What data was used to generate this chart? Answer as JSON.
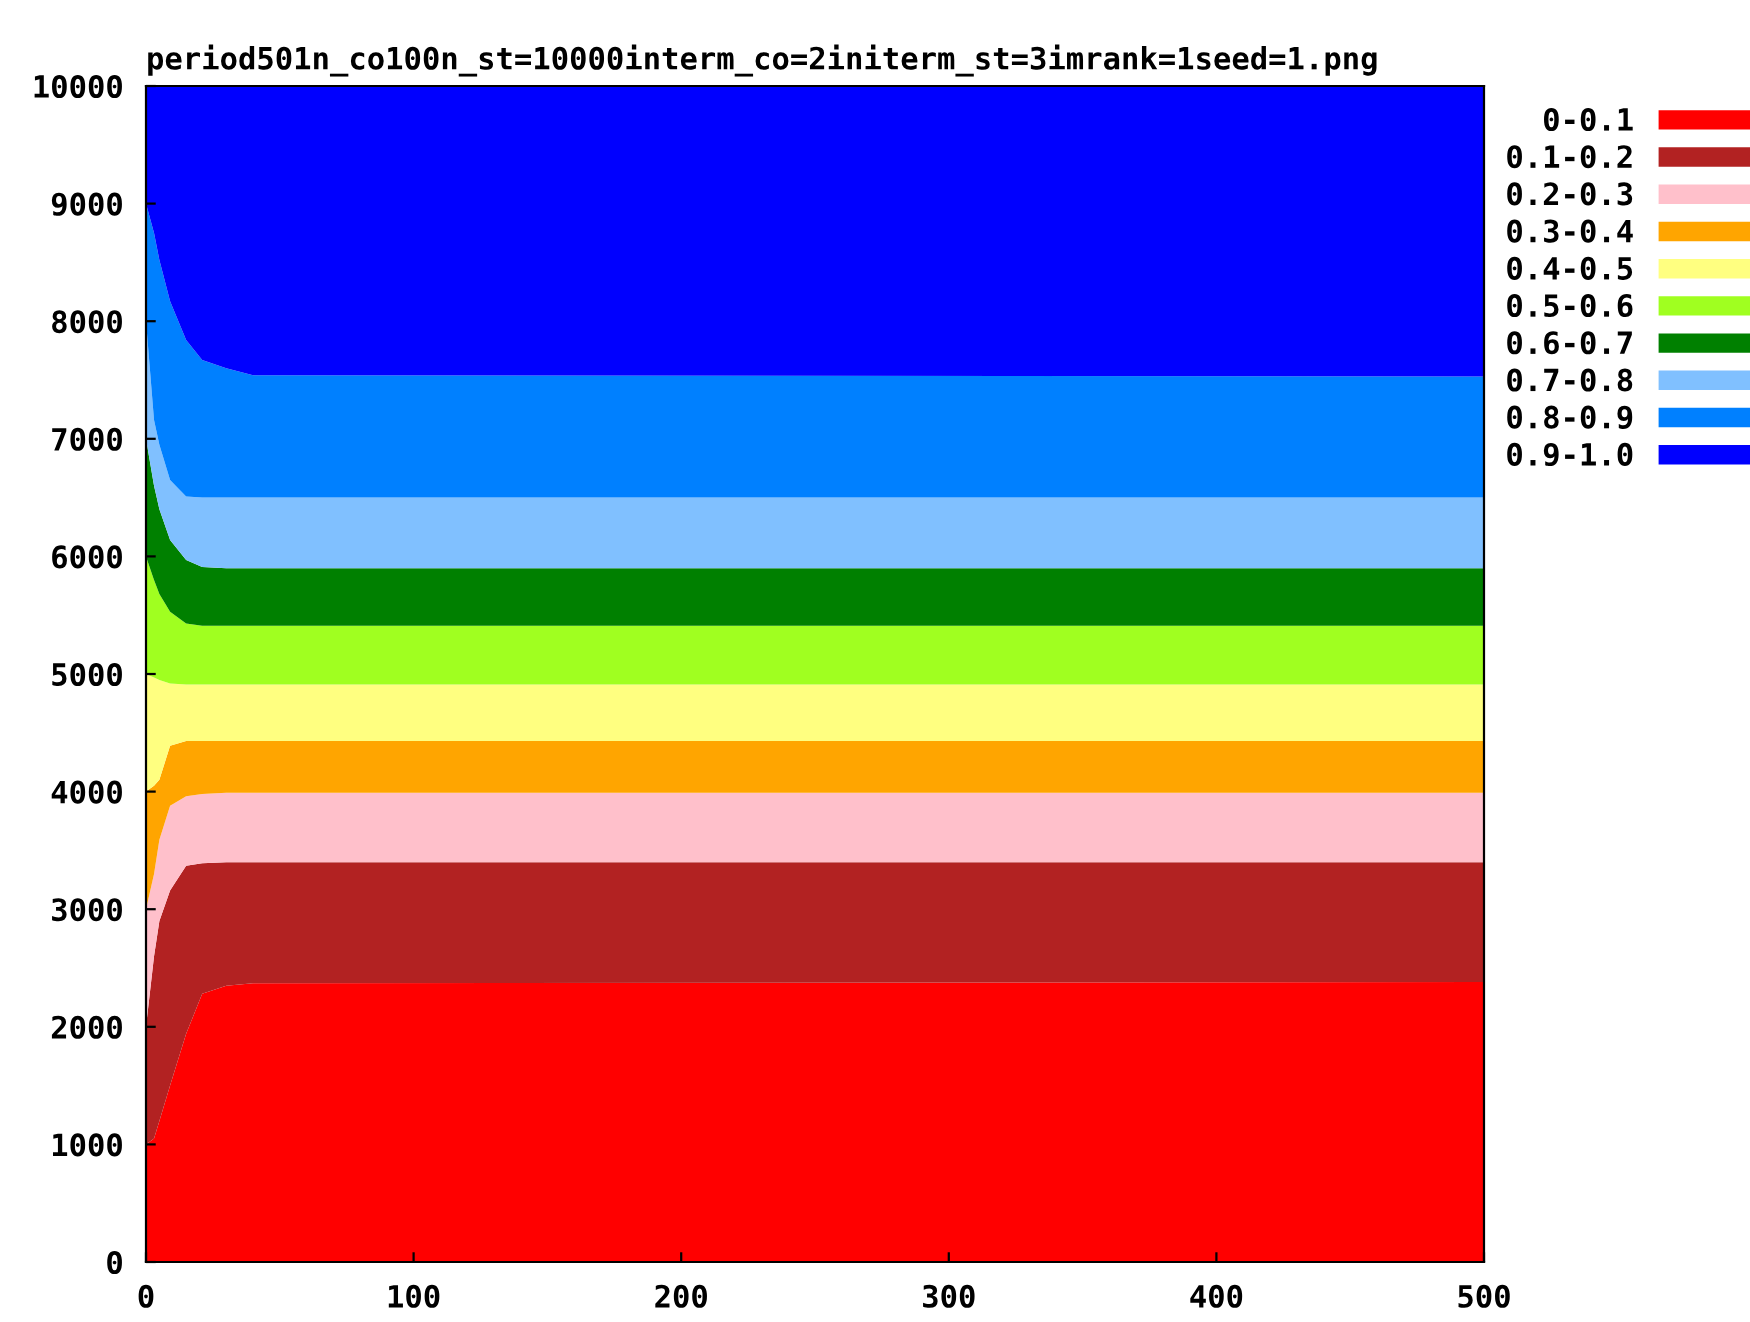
{
  "chart_data": {
    "type": "area",
    "stacked": true,
    "title": "period501n_co100n_st=10000interm_co=2initerm_st=3imrank=1seed=1.png",
    "x": [
      0,
      3,
      5,
      9,
      15,
      21,
      30,
      40,
      500
    ],
    "xlim": [
      0,
      500
    ],
    "xticks": [
      0,
      100,
      200,
      300,
      400,
      500
    ],
    "ylim": [
      0,
      10000
    ],
    "yticks": [
      0,
      1000,
      2000,
      3000,
      4000,
      5000,
      6000,
      7000,
      8000,
      9000,
      10000
    ],
    "grid": false,
    "legend": "top right",
    "series": [
      {
        "name": "0-0.1",
        "color": "#ff0000",
        "values": [
          1000,
          1050,
          1200,
          1500,
          1940,
          2280,
          2350,
          2370,
          2380
        ]
      },
      {
        "name": "0.1-0.2",
        "color": "#b22222",
        "values": [
          1000,
          1550,
          1700,
          1660,
          1430,
          1110,
          1050,
          1030,
          1020
        ]
      },
      {
        "name": "0.2-0.3",
        "color": "#ffc0cb",
        "values": [
          1000,
          700,
          690,
          720,
          590,
          590,
          590,
          590,
          590
        ]
      },
      {
        "name": "0.3-0.4",
        "color": "#ffa500",
        "values": [
          1000,
          750,
          510,
          510,
          470,
          450,
          440,
          440,
          440
        ]
      },
      {
        "name": "0.4-0.5",
        "color": "#ffff80",
        "values": [
          1000,
          920,
          850,
          530,
          480,
          480,
          480,
          480,
          480
        ]
      },
      {
        "name": "0.5-0.6",
        "color": "#a0ff20",
        "values": [
          1000,
          830,
          730,
          610,
          520,
          500,
          500,
          500,
          500
        ]
      },
      {
        "name": "0.6-0.7",
        "color": "#008000",
        "values": [
          1000,
          800,
          720,
          610,
          540,
          500,
          490,
          490,
          490
        ]
      },
      {
        "name": "0.7-0.8",
        "color": "#80c0ff",
        "values": [
          1000,
          560,
          550,
          510,
          540,
          590,
          600,
          600,
          600
        ]
      },
      {
        "name": "0.8-0.9",
        "color": "#0080ff",
        "values": [
          1000,
          1590,
          1570,
          1520,
          1330,
          1170,
          1100,
          1040,
          1030
        ]
      },
      {
        "name": "0.9-1.0",
        "color": "#0000ff",
        "values": [
          1000,
          1250,
          1480,
          1830,
          2160,
          2330,
          2400,
          2460,
          2470
        ]
      }
    ]
  }
}
